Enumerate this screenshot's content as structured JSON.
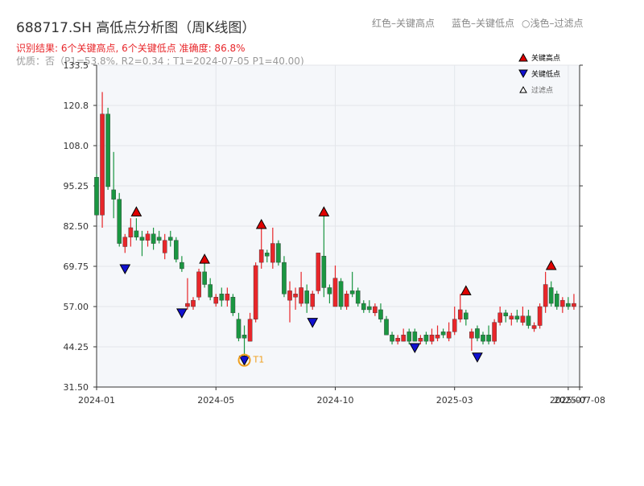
{
  "chart_data": {
    "type": "candlestick",
    "title": "688717.SH 高低点分析图（周K线图）",
    "subtitle": "识别结果: 6个关键高点, 6个关键低点  准确度: 86.8%",
    "note": "优质：否（P1=53.8%, R2=0.34 ; T1=2024-07-05 P1=40.00)",
    "top_legend": [
      "红色–关键高点",
      "蓝色–关键低点",
      "○浅色–过滤点"
    ],
    "legend": [
      "关键高点",
      "关键低点",
      "过滤点"
    ],
    "up_color": "#e8262a",
    "down_color": "#1a9641",
    "high_color": "#e00000",
    "low_color": "#1010d0",
    "open": [
      98,
      86,
      118,
      94,
      91,
      76,
      79,
      81,
      79,
      78,
      80,
      79,
      74,
      79,
      78,
      71,
      57,
      57,
      60,
      68,
      64,
      58,
      61,
      59,
      60,
      53,
      48,
      46,
      53,
      71,
      74,
      71,
      77,
      71,
      59,
      60,
      58,
      62,
      57,
      62,
      73,
      63,
      57,
      65,
      57,
      62,
      62,
      58,
      57,
      55,
      56,
      53,
      48,
      46,
      46,
      49,
      49,
      46,
      48,
      46,
      47,
      49,
      47,
      49,
      53,
      55,
      47,
      50,
      48,
      48,
      46,
      52,
      55,
      53,
      54,
      52,
      54,
      50,
      51,
      57,
      63,
      61,
      57,
      58,
      57
    ],
    "high": [
      99,
      125,
      120,
      106,
      93,
      80,
      85,
      85,
      81,
      81,
      82,
      81,
      80,
      81,
      79,
      73,
      66,
      60,
      69,
      71,
      66,
      61,
      63,
      63,
      61,
      55,
      51,
      55,
      71,
      82,
      75,
      82,
      78,
      73,
      65,
      63,
      68,
      64,
      62,
      74,
      86,
      64,
      70,
      66,
      62,
      68,
      63,
      59,
      59,
      58,
      58,
      54,
      49,
      48,
      50,
      50,
      50,
      48,
      49,
      50,
      51,
      50,
      52,
      57,
      61,
      56,
      50,
      51,
      49,
      51,
      53,
      57,
      56,
      55,
      56,
      57,
      56,
      52,
      58,
      68,
      65,
      62,
      60,
      60,
      61
    ],
    "low": [
      86,
      82,
      94,
      85,
      76,
      74,
      76,
      78,
      73,
      76,
      75,
      77,
      72,
      76,
      71,
      68,
      56,
      56,
      59,
      63,
      59,
      57,
      57,
      57,
      54,
      46,
      40,
      46,
      52,
      69,
      71,
      69,
      70,
      60,
      52,
      56,
      57,
      55,
      56,
      61,
      60,
      58,
      57,
      56,
      56,
      60,
      57,
      55,
      55,
      54,
      52,
      48,
      45,
      45,
      46,
      45,
      46,
      45,
      45,
      45,
      46,
      47,
      46,
      48,
      52,
      51,
      43,
      46,
      45,
      45,
      45,
      51,
      52,
      51,
      52,
      51,
      50,
      49,
      50,
      55,
      57,
      56,
      55,
      56,
      56
    ],
    "close": [
      86,
      118,
      95,
      91,
      77,
      79,
      82,
      79,
      78,
      80,
      77,
      78,
      78,
      78,
      72,
      69,
      58,
      59,
      68,
      64,
      60,
      60,
      59,
      61,
      55,
      47,
      47,
      53,
      70,
      75,
      73,
      77,
      71,
      61,
      62,
      61,
      63,
      58,
      61,
      74,
      63,
      61,
      66,
      57,
      61,
      61,
      58,
      56,
      56,
      57,
      53,
      48,
      46,
      47,
      48,
      46,
      46,
      47,
      46,
      48,
      48,
      48,
      49,
      53,
      56,
      53,
      49,
      47,
      46,
      46,
      52,
      55,
      54,
      54,
      53,
      54,
      51,
      51,
      57,
      64,
      58,
      57,
      59,
      57,
      58
    ],
    "key_highs": [
      {
        "index": 7,
        "value": 87
      },
      {
        "index": 19,
        "value": 72
      },
      {
        "index": 29,
        "value": 83
      },
      {
        "index": 40,
        "value": 87
      },
      {
        "index": 65,
        "value": 62
      },
      {
        "index": 80,
        "value": 70
      }
    ],
    "key_lows": [
      {
        "index": 5,
        "value": 69
      },
      {
        "index": 15,
        "value": 55
      },
      {
        "index": 26,
        "value": 40
      },
      {
        "index": 38,
        "value": 52
      },
      {
        "index": 56,
        "value": 44
      },
      {
        "index": 67,
        "value": 41
      }
    ],
    "annotation": {
      "text": "T1",
      "index": 26,
      "value": 40
    },
    "xlim": [
      0,
      85
    ],
    "ylim": [
      31.5,
      133.5
    ],
    "xticks": [
      {
        "value": 0,
        "label": "2024-01"
      },
      {
        "value": 21,
        "label": "2024-05"
      },
      {
        "value": 42,
        "label": "2024-10"
      },
      {
        "value": 63,
        "label": "2025-03"
      },
      {
        "value": 83,
        "label": "2025-07"
      },
      {
        "value": 85,
        "label": "2025-07-08"
      }
    ],
    "yticks": [
      {
        "value": 31.5,
        "label": "31.50"
      },
      44.25,
      {
        "value": 57,
        "label": "57.00"
      },
      69.75,
      {
        "value": 82.5,
        "label": "82.50"
      },
      95.25,
      {
        "value": 108,
        "label": "108.0"
      },
      {
        "value": 120.75,
        "label": "120.8"
      },
      133.5
    ],
    "grid": true
  }
}
